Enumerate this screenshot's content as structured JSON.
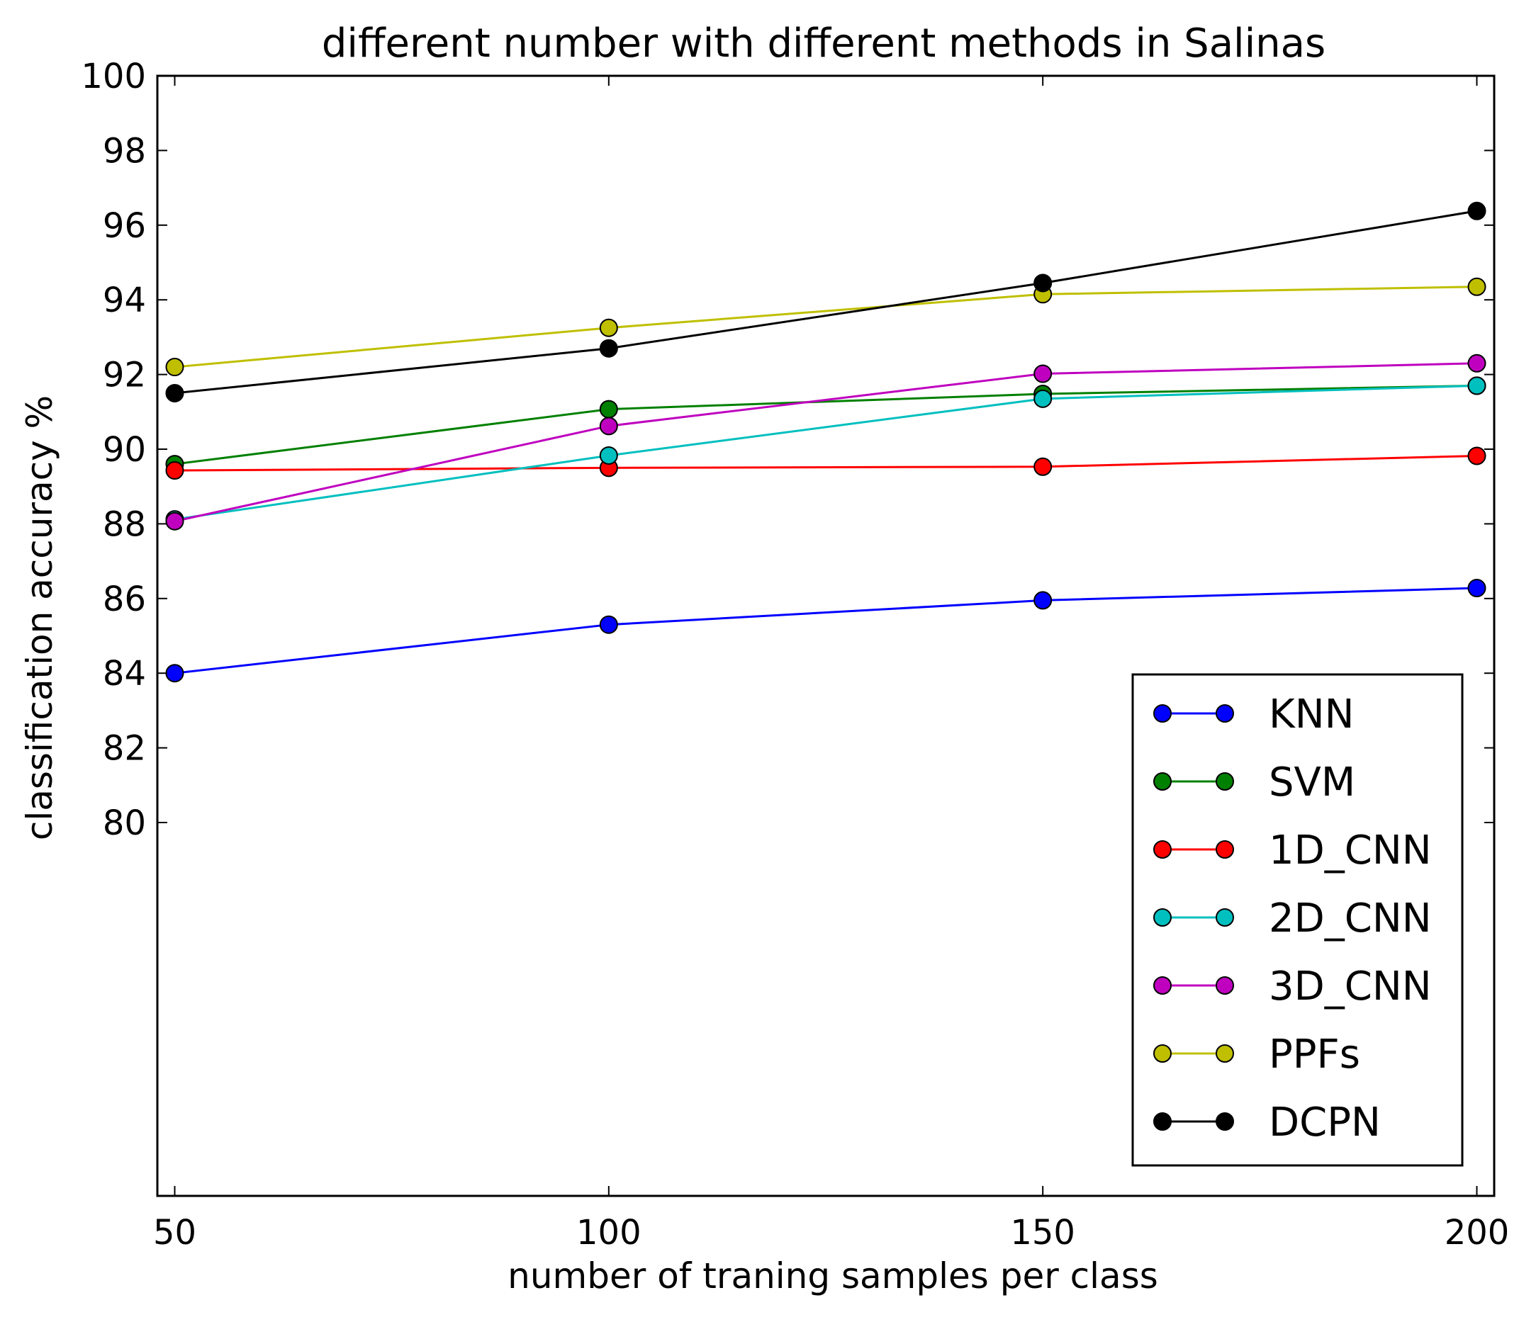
{
  "chart_data": {
    "type": "line",
    "title": "different number with different methods in Salinas",
    "xlabel": "number of traning samples per class",
    "ylabel": "classification accuracy %",
    "x": [
      50,
      100,
      150,
      200
    ],
    "xlim": [
      48,
      202
    ],
    "ylim": [
      70,
      100
    ],
    "xticks": [
      "50",
      "100",
      "150",
      "200"
    ],
    "yticks": [
      "80",
      "82",
      "84",
      "86",
      "88",
      "90",
      "92",
      "94",
      "96",
      "98",
      "100"
    ],
    "legend_position": "lower-right",
    "grid": false,
    "series": [
      {
        "name": "KNN",
        "color": "#0000ff",
        "values": [
          84.0,
          85.3,
          85.95,
          86.28
        ]
      },
      {
        "name": "SVM",
        "color": "#008000",
        "values": [
          89.6,
          91.07,
          91.48,
          91.7
        ]
      },
      {
        "name": "1D_CNN",
        "color": "#ff0000",
        "values": [
          89.43,
          89.5,
          89.53,
          89.82
        ]
      },
      {
        "name": "2D_CNN",
        "color": "#00bfbf",
        "values": [
          88.12,
          89.83,
          91.35,
          91.7
        ]
      },
      {
        "name": "3D_CNN",
        "color": "#bf00bf",
        "values": [
          88.07,
          90.62,
          92.02,
          92.3
        ]
      },
      {
        "name": "PPFs",
        "color": "#bfbf00",
        "values": [
          92.2,
          93.25,
          94.15,
          94.35
        ]
      },
      {
        "name": "DCPN",
        "color": "#000000",
        "values": [
          91.5,
          92.7,
          94.45,
          96.38
        ]
      }
    ]
  }
}
